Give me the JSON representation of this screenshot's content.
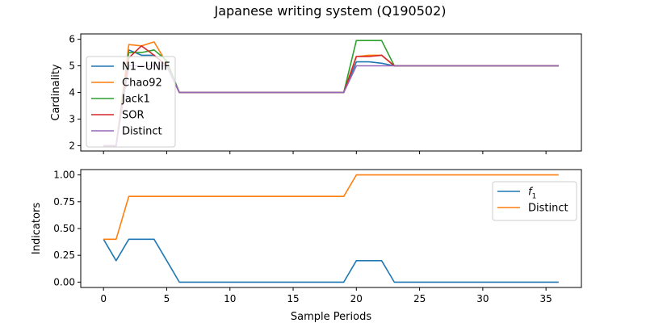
{
  "chart_data": [
    {
      "type": "line",
      "title": "Japanese writing system (Q190502)",
      "xlabel": "",
      "ylabel": "Cardinality",
      "xlim": [
        -1.8,
        37.8
      ],
      "ylim": [
        1.8,
        6.2
      ],
      "xticks": [
        0,
        5,
        10,
        15,
        20,
        25,
        30,
        35
      ],
      "yticks": [
        2,
        3,
        4,
        5,
        6
      ],
      "legend": "upper-left",
      "x": [
        0,
        1,
        2,
        3,
        4,
        5,
        6,
        7,
        8,
        9,
        10,
        11,
        12,
        13,
        14,
        15,
        16,
        17,
        18,
        19,
        20,
        21,
        22,
        23,
        24,
        25,
        26,
        27,
        28,
        29,
        30,
        31,
        32,
        33,
        34,
        35,
        36
      ],
      "series": [
        {
          "name": "N1−UNIF",
          "color": "#1f77b4",
          "values": [
            2,
            2,
            5.6,
            5.4,
            5.4,
            5,
            4,
            4,
            4,
            4,
            4,
            4,
            4,
            4,
            4,
            4,
            4,
            4,
            4,
            4,
            5.15,
            5.15,
            5.1,
            5,
            5,
            5,
            5,
            5,
            5,
            5,
            5,
            5,
            5,
            5,
            5,
            5,
            5
          ]
        },
        {
          "name": "Chao92",
          "color": "#ff7f0e",
          "values": [
            2,
            2,
            5.8,
            5.75,
            5.9,
            5.1,
            4,
            4,
            4,
            4,
            4,
            4,
            4,
            4,
            4,
            4,
            4,
            4,
            4,
            4,
            5.35,
            5.4,
            5.4,
            5,
            5,
            5,
            5,
            5,
            5,
            5,
            5,
            5,
            5,
            5,
            5,
            5,
            5
          ]
        },
        {
          "name": "Jack1",
          "color": "#2ca02c",
          "values": [
            2,
            2,
            5.5,
            5.5,
            5.6,
            5.2,
            4,
            4,
            4,
            4,
            4,
            4,
            4,
            4,
            4,
            4,
            4,
            4,
            4,
            4,
            5.95,
            5.95,
            5.95,
            5,
            5,
            5,
            5,
            5,
            5,
            5,
            5,
            5,
            5,
            5,
            5,
            5,
            5
          ]
        },
        {
          "name": "SOR",
          "color": "#d62728",
          "values": [
            2,
            2,
            5.3,
            5.75,
            5.4,
            5,
            4,
            4,
            4,
            4,
            4,
            4,
            4,
            4,
            4,
            4,
            4,
            4,
            4,
            4,
            5.35,
            5.35,
            5.4,
            5,
            5,
            5,
            5,
            5,
            5,
            5,
            5,
            5,
            5,
            5,
            5,
            5,
            5
          ]
        },
        {
          "name": "Distinct",
          "color": "#9467bd",
          "values": [
            2,
            2,
            5,
            5,
            5,
            5,
            4,
            4,
            4,
            4,
            4,
            4,
            4,
            4,
            4,
            4,
            4,
            4,
            4,
            4,
            5,
            5,
            5,
            5,
            5,
            5,
            5,
            5,
            5,
            5,
            5,
            5,
            5,
            5,
            5,
            5,
            5
          ]
        }
      ]
    },
    {
      "type": "line",
      "title": "",
      "xlabel": "Sample Periods",
      "ylabel": "Indicators",
      "xlim": [
        -1.8,
        37.8
      ],
      "ylim": [
        -0.05,
        1.05
      ],
      "xticks": [
        0,
        5,
        10,
        15,
        20,
        25,
        30,
        35
      ],
      "yticks": [
        0.0,
        0.25,
        0.5,
        0.75,
        1.0
      ],
      "ytick_labels": [
        "0.00",
        "0.25",
        "0.50",
        "0.75",
        "1.00"
      ],
      "legend": "upper-right",
      "x": [
        0,
        1,
        2,
        3,
        4,
        5,
        6,
        7,
        8,
        9,
        10,
        11,
        12,
        13,
        14,
        15,
        16,
        17,
        18,
        19,
        20,
        21,
        22,
        23,
        24,
        25,
        26,
        27,
        28,
        29,
        30,
        31,
        32,
        33,
        34,
        35,
        36
      ],
      "series": [
        {
          "name": "f",
          "name_subscript": "1",
          "color": "#1f77b4",
          "values": [
            0.4,
            0.2,
            0.4,
            0.4,
            0.4,
            0.2,
            0,
            0,
            0,
            0,
            0,
            0,
            0,
            0,
            0,
            0,
            0,
            0,
            0,
            0,
            0.2,
            0.2,
            0.2,
            0,
            0,
            0,
            0,
            0,
            0,
            0,
            0,
            0,
            0,
            0,
            0,
            0,
            0
          ]
        },
        {
          "name": "Distinct",
          "color": "#ff7f0e",
          "values": [
            0.4,
            0.4,
            0.8,
            0.8,
            0.8,
            0.8,
            0.8,
            0.8,
            0.8,
            0.8,
            0.8,
            0.8,
            0.8,
            0.8,
            0.8,
            0.8,
            0.8,
            0.8,
            0.8,
            0.8,
            1,
            1,
            1,
            1,
            1,
            1,
            1,
            1,
            1,
            1,
            1,
            1,
            1,
            1,
            1,
            1,
            1
          ]
        }
      ]
    }
  ]
}
